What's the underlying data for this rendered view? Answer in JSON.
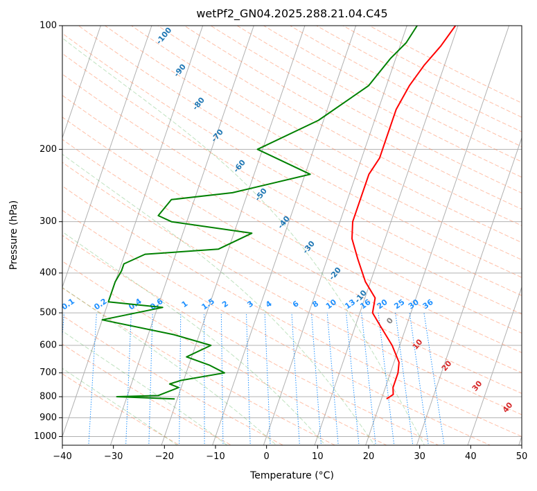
{
  "chart_data": {
    "type": "line",
    "title": "wetPf2_GN04.2025.288.21.04.C45",
    "xlabel": "Temperature (°C)",
    "ylabel": "Pressure (hPa)",
    "xlim": [
      -40,
      50
    ],
    "ylim": [
      1050,
      100
    ],
    "y_scale": "log",
    "x_ticks": [
      -40,
      -30,
      -20,
      -10,
      0,
      10,
      20,
      30,
      40,
      50
    ],
    "y_ticks": [
      100,
      200,
      300,
      400,
      500,
      600,
      700,
      800,
      900,
      1000
    ],
    "grid": true,
    "colors": {
      "temperature": "#ff0000",
      "dewpoint": "#008000",
      "dry_adiabat": "#ff7f50",
      "moist_adiabat": "#2ca02c",
      "mixing_ratio": "#1e90ff",
      "isotherm": "#808080"
    },
    "series": [
      {
        "key": "temperature",
        "points": [
          [
            21.0,
            810
          ],
          [
            22.0,
            790
          ],
          [
            21.5,
            760
          ],
          [
            21.5,
            700
          ],
          [
            21.0,
            660
          ],
          [
            18.5,
            600
          ],
          [
            15.0,
            540
          ],
          [
            12.5,
            500
          ],
          [
            12.0,
            460
          ],
          [
            9.0,
            420
          ],
          [
            6.0,
            370
          ],
          [
            3.5,
            330
          ],
          [
            2.5,
            300
          ],
          [
            2.5,
            260
          ],
          [
            2.5,
            230
          ],
          [
            3.5,
            210
          ],
          [
            3.5,
            190
          ],
          [
            3.5,
            160
          ],
          [
            4.5,
            140
          ],
          [
            6.0,
            125
          ],
          [
            8.0,
            112
          ],
          [
            9.5,
            100
          ]
        ]
      },
      {
        "key": "dewpoint",
        "points": [
          [
            -20.5,
            810
          ],
          [
            -32.0,
            800
          ],
          [
            -24.0,
            795
          ],
          [
            -20.5,
            760
          ],
          [
            -22.5,
            745
          ],
          [
            -20.5,
            730
          ],
          [
            -12.5,
            700
          ],
          [
            -16.0,
            670
          ],
          [
            -21.0,
            640
          ],
          [
            -17.0,
            600
          ],
          [
            -25.0,
            565
          ],
          [
            -40.0,
            520
          ],
          [
            -29.0,
            485
          ],
          [
            -40.0,
            470
          ],
          [
            -40.0,
            420
          ],
          [
            -39.5,
            395
          ],
          [
            -39.5,
            380
          ],
          [
            -36.0,
            360
          ],
          [
            -22.0,
            350
          ],
          [
            -16.5,
            320
          ],
          [
            -33.0,
            300
          ],
          [
            -36.0,
            290
          ],
          [
            -34.5,
            265
          ],
          [
            -23.0,
            255
          ],
          [
            -9.0,
            230
          ],
          [
            -21.0,
            200
          ],
          [
            -11.0,
            170
          ],
          [
            -3.5,
            140
          ],
          [
            -1.0,
            120
          ],
          [
            1.0,
            110
          ],
          [
            2.0,
            100
          ]
        ]
      }
    ],
    "dry_adiabat_labels": [
      -100,
      -90,
      -80,
      -70,
      -60,
      -50,
      -40,
      -30,
      -20,
      -10,
      0,
      10,
      20,
      30,
      40
    ],
    "moist_adiabats_C": [
      -20,
      -10,
      0,
      10,
      20,
      30
    ],
    "mixing_ratio_labels": [
      "0.1",
      "0.2",
      "0.4",
      "0.6",
      "1",
      "1.5",
      "2",
      "3",
      "4",
      "6",
      "8",
      "10",
      "13",
      "16",
      "20",
      "25",
      "30",
      "36"
    ],
    "isotherm_zero_label": "0"
  }
}
